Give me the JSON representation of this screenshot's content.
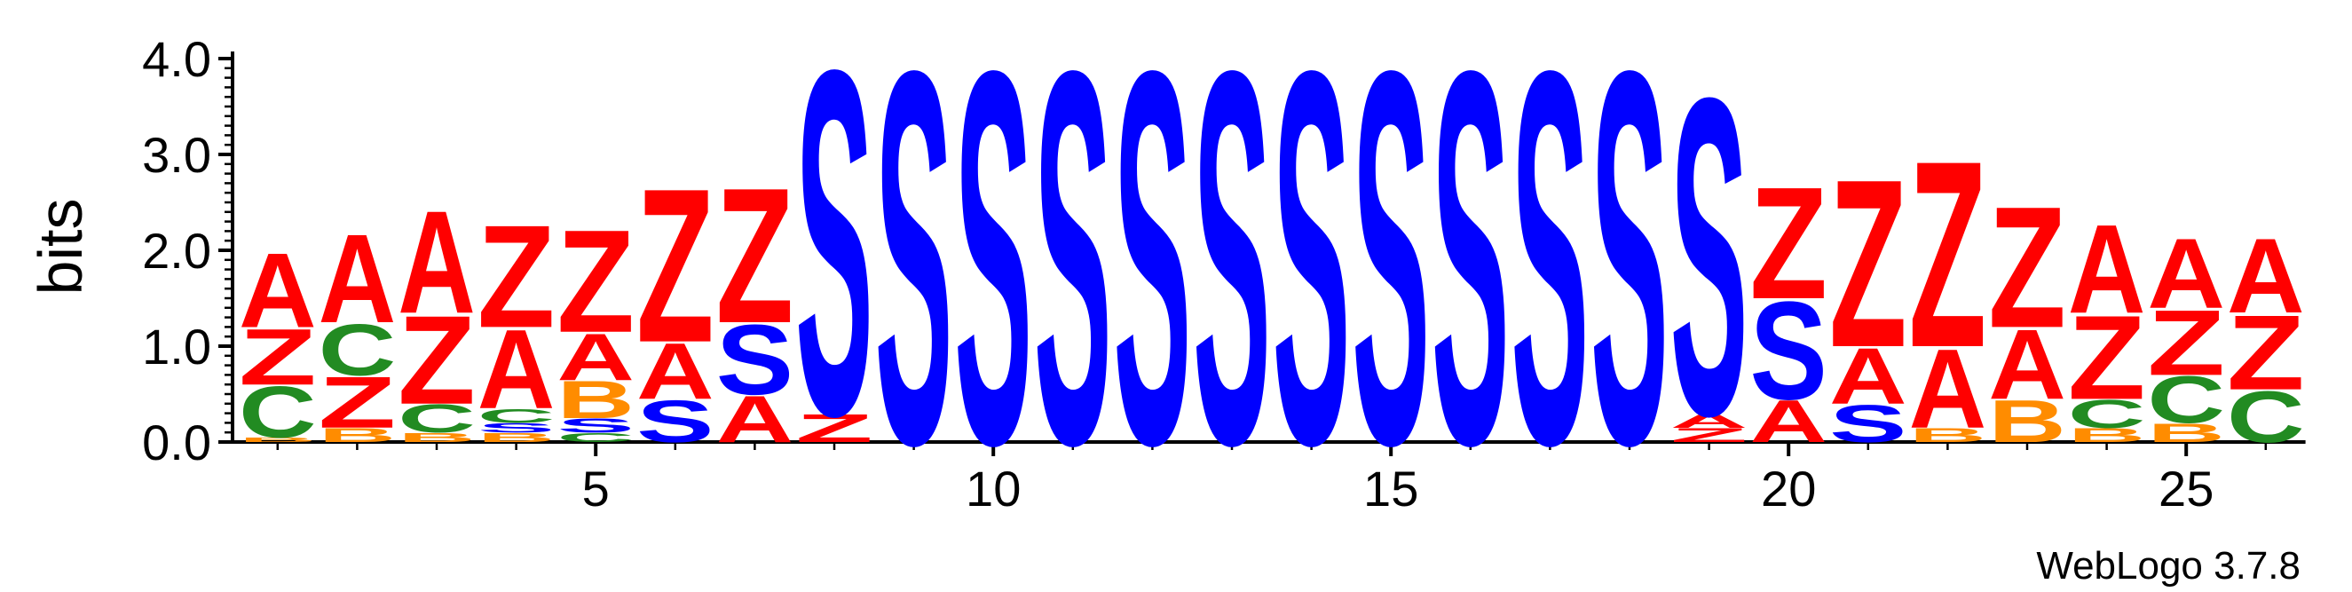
{
  "chart_data": {
    "type": "sequence-logo",
    "ylabel": "bits",
    "ylim": [
      0,
      4.0
    ],
    "yticks": [
      "0.0",
      "1.0",
      "2.0",
      "3.0",
      "4.0"
    ],
    "xticks": [
      5,
      10,
      15,
      20,
      25
    ],
    "credit": "WebLogo 3.7.8",
    "colors": {
      "A": "#ff0000",
      "Z": "#ff0000",
      "S": "#0000ff",
      "C": "#228b22",
      "B": "#ff8c00"
    },
    "positions": [
      {
        "pos": 1,
        "stack": [
          {
            "letter": "B",
            "height": 0.05
          },
          {
            "letter": "C",
            "height": 0.55
          },
          {
            "letter": "Z",
            "height": 0.6
          },
          {
            "letter": "A",
            "height": 0.8
          }
        ]
      },
      {
        "pos": 2,
        "stack": [
          {
            "letter": "B",
            "height": 0.15
          },
          {
            "letter": "Z",
            "height": 0.55
          },
          {
            "letter": "C",
            "height": 0.55
          },
          {
            "letter": "A",
            "height": 0.95
          }
        ]
      },
      {
        "pos": 3,
        "stack": [
          {
            "letter": "B",
            "height": 0.1
          },
          {
            "letter": "C",
            "height": 0.3
          },
          {
            "letter": "Z",
            "height": 0.95
          },
          {
            "letter": "A",
            "height": 1.1
          }
        ]
      },
      {
        "pos": 4,
        "stack": [
          {
            "letter": "B",
            "height": 0.1
          },
          {
            "letter": "S",
            "height": 0.1
          },
          {
            "letter": "C",
            "height": 0.15
          },
          {
            "letter": "A",
            "height": 0.85
          },
          {
            "letter": "Z",
            "height": 1.1
          }
        ]
      },
      {
        "pos": 5,
        "stack": [
          {
            "letter": "C",
            "height": 0.1
          },
          {
            "letter": "S",
            "height": 0.15
          },
          {
            "letter": "B",
            "height": 0.4
          },
          {
            "letter": "A",
            "height": 0.5
          },
          {
            "letter": "Z",
            "height": 1.1
          }
        ]
      },
      {
        "pos": 6,
        "stack": [
          {
            "letter": "S",
            "height": 0.45
          },
          {
            "letter": "A",
            "height": 0.6
          },
          {
            "letter": "Z",
            "height": 1.65
          }
        ]
      },
      {
        "pos": 7,
        "stack": [
          {
            "letter": "A",
            "height": 0.5
          },
          {
            "letter": "S",
            "height": 0.75
          },
          {
            "letter": "Z",
            "height": 1.45
          }
        ]
      },
      {
        "pos": 8,
        "stack": [
          {
            "letter": "Z",
            "height": 0.3
          },
          {
            "letter": "S",
            "height": 3.7
          }
        ]
      },
      {
        "pos": 9,
        "stack": [
          {
            "letter": "S",
            "height": 4.0
          }
        ]
      },
      {
        "pos": 10,
        "stack": [
          {
            "letter": "S",
            "height": 4.0
          }
        ]
      },
      {
        "pos": 11,
        "stack": [
          {
            "letter": "S",
            "height": 4.0
          }
        ]
      },
      {
        "pos": 12,
        "stack": [
          {
            "letter": "S",
            "height": 4.0
          }
        ]
      },
      {
        "pos": 13,
        "stack": [
          {
            "letter": "S",
            "height": 4.0
          }
        ]
      },
      {
        "pos": 14,
        "stack": [
          {
            "letter": "S",
            "height": 4.0
          }
        ]
      },
      {
        "pos": 15,
        "stack": [
          {
            "letter": "S",
            "height": 4.0
          }
        ]
      },
      {
        "pos": 16,
        "stack": [
          {
            "letter": "S",
            "height": 4.0
          }
        ]
      },
      {
        "pos": 17,
        "stack": [
          {
            "letter": "S",
            "height": 4.0
          }
        ]
      },
      {
        "pos": 18,
        "stack": [
          {
            "letter": "S",
            "height": 4.0
          }
        ]
      },
      {
        "pos": 19,
        "stack": [
          {
            "letter": "Z",
            "height": 0.15
          },
          {
            "letter": "A",
            "height": 0.15
          },
          {
            "letter": "S",
            "height": 3.4
          }
        ]
      },
      {
        "pos": 20,
        "stack": [
          {
            "letter": "A",
            "height": 0.45
          },
          {
            "letter": "S",
            "height": 1.05
          },
          {
            "letter": "Z",
            "height": 1.2
          }
        ]
      },
      {
        "pos": 21,
        "stack": [
          {
            "letter": "S",
            "height": 0.4
          },
          {
            "letter": "A",
            "height": 0.6
          },
          {
            "letter": "Z",
            "height": 1.8
          }
        ]
      },
      {
        "pos": 22,
        "stack": [
          {
            "letter": "B",
            "height": 0.15
          },
          {
            "letter": "A",
            "height": 0.85
          },
          {
            "letter": "Z",
            "height": 2.0
          }
        ]
      },
      {
        "pos": 23,
        "stack": [
          {
            "letter": "B",
            "height": 0.45
          },
          {
            "letter": "A",
            "height": 0.75
          },
          {
            "letter": "Z",
            "height": 1.3
          }
        ]
      },
      {
        "pos": 24,
        "stack": [
          {
            "letter": "B",
            "height": 0.15
          },
          {
            "letter": "C",
            "height": 0.3
          },
          {
            "letter": "Z",
            "height": 0.9
          },
          {
            "letter": "A",
            "height": 0.95
          }
        ]
      },
      {
        "pos": 25,
        "stack": [
          {
            "letter": "B",
            "height": 0.2
          },
          {
            "letter": "C",
            "height": 0.5
          },
          {
            "letter": "Z",
            "height": 0.7
          },
          {
            "letter": "A",
            "height": 0.75
          }
        ]
      },
      {
        "pos": 26,
        "stack": [
          {
            "letter": "C",
            "height": 0.55
          },
          {
            "letter": "Z",
            "height": 0.8
          },
          {
            "letter": "A",
            "height": 0.8
          }
        ]
      }
    ]
  }
}
